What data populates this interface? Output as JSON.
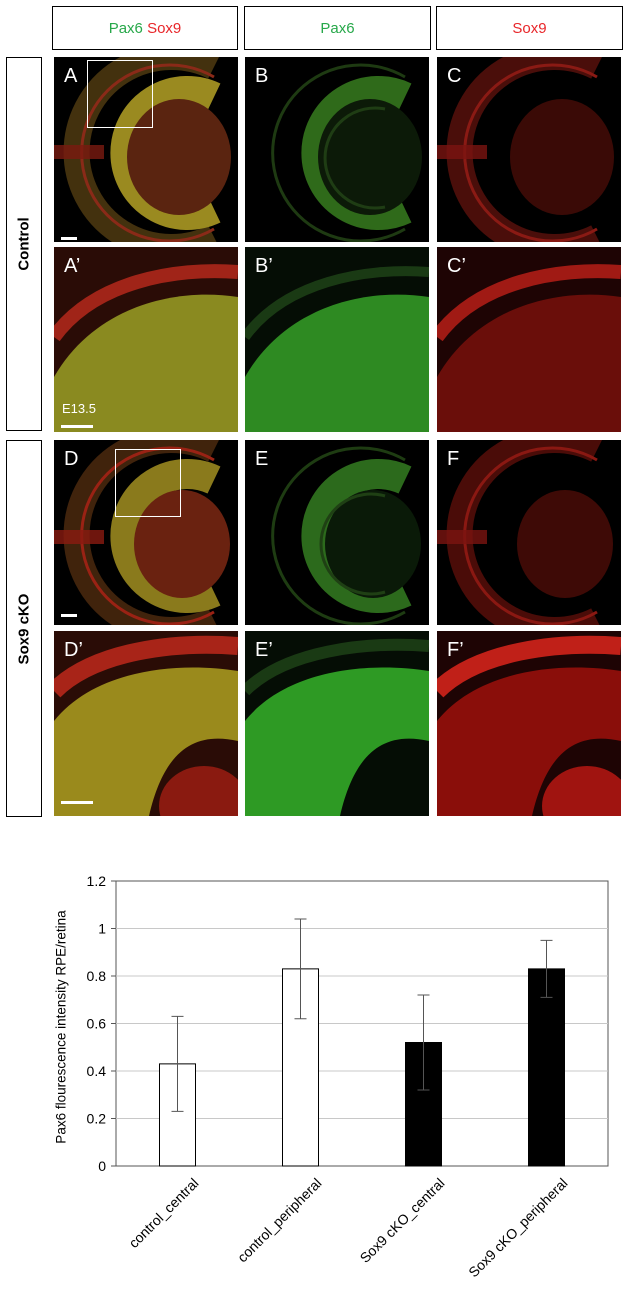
{
  "figure": {
    "headers": {
      "merge_pax6": "Pax6",
      "merge_sox9": "Sox9",
      "pax6": "Pax6",
      "sox9": "Sox9"
    },
    "rows": {
      "control": "Control",
      "cko": "Sox9 cKO"
    },
    "panels": {
      "A": "A",
      "B": "B",
      "C": "C",
      "A2": "A’",
      "B2": "B’",
      "C2": "C’",
      "D": "D",
      "E": "E",
      "F": "F",
      "D2": "D’",
      "E2": "E’",
      "F2": "F’"
    },
    "stage": "E13.5",
    "colors": {
      "pax6": "#27a84a",
      "sox9": "#e8262a"
    }
  },
  "chart_data": {
    "type": "bar",
    "title": "",
    "xlabel": "",
    "ylabel": "Pax6 flourescence intensity RPE/retina",
    "ylim": [
      0,
      1.2
    ],
    "yticks": [
      0,
      0.2,
      0.4,
      0.6,
      0.8,
      1,
      1.2
    ],
    "ytick_labels": [
      "0",
      "0.2",
      "0.4",
      "0.6",
      "0.8",
      "1",
      "1.2"
    ],
    "grid": true,
    "categories": [
      "control_central",
      "control_peripheral",
      "Sox9 cKO_central",
      "Sox9 cKO_peripheral"
    ],
    "values": [
      0.43,
      0.83,
      0.52,
      0.83
    ],
    "error": [
      0.2,
      0.21,
      0.2,
      0.12
    ],
    "bar_colors": [
      "#ffffff",
      "#ffffff",
      "#000000",
      "#000000"
    ]
  }
}
